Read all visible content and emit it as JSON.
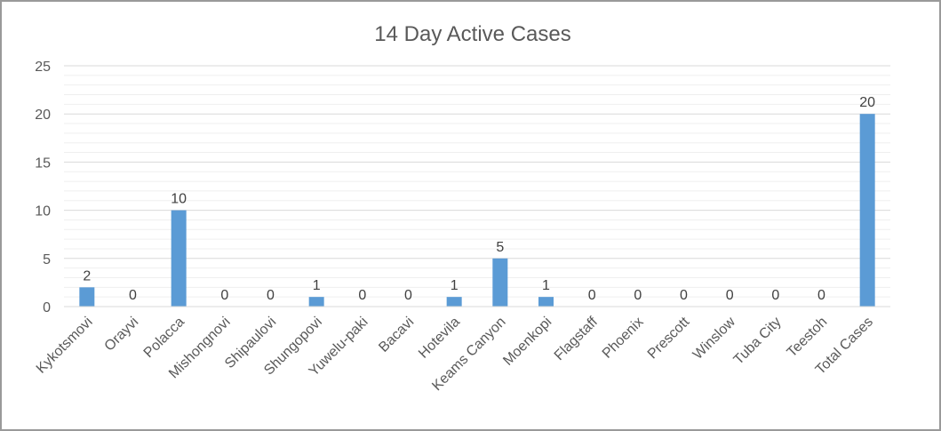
{
  "chart_data": {
    "type": "bar",
    "title": "14 Day Active Cases",
    "xlabel": "",
    "ylabel": "",
    "ylim": [
      0,
      25
    ],
    "yticks": [
      0,
      5,
      10,
      15,
      20,
      25
    ],
    "grid": true,
    "legend": "none",
    "bar_color": "#5b9bd5",
    "categories": [
      "Kykotsmovi",
      "Orayvi",
      "Polacca",
      "Mishongnovi",
      "Shipaulovi",
      "Shungopovi",
      "Yuwelu-paki",
      "Bacavi",
      "Hotevila",
      "Keams Canyon",
      "Moenkopi",
      "Flagstaff",
      "Phoenix",
      "Prescott",
      "Winslow",
      "Tuba City",
      "Teestoh",
      "Total Cases"
    ],
    "values": [
      2,
      0,
      10,
      0,
      0,
      1,
      0,
      0,
      1,
      5,
      1,
      0,
      0,
      0,
      0,
      0,
      0,
      20
    ]
  }
}
